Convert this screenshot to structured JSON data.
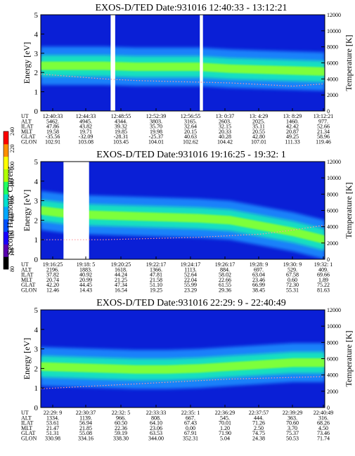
{
  "colors": {
    "deep": "#0a1fd6",
    "band_center": "#7dff3a",
    "band_mid": "#18e0c0",
    "band_edge": "#1a8cff",
    "gap": "#ffffff",
    "temperature_trace": "#ff9aa0"
  },
  "colorbar": {
    "label": "Second Harmonic Current",
    "ticks": [
      "80",
      "100",
      "120",
      "140",
      "160",
      "180",
      "200",
      "220",
      "240"
    ],
    "colors": [
      "#000000",
      "#5a00b0",
      "#1a00ff",
      "#0050ff",
      "#00a8ff",
      "#00e0d0",
      "#20ff60",
      "#b0ff00",
      "#ffff00",
      "#ff9000",
      "#ff0000"
    ]
  },
  "ephemeris_labels": [
    "UT",
    "ALT",
    "ILAT",
    "MLT",
    "GLAT",
    "GLON"
  ],
  "chart_data": [
    {
      "type": "heatmap",
      "title": "EXOS-D/TED   Date:931016   12:40:33 - 13:12:21",
      "ylabel": "Energy [eV]",
      "y2label": "Temperature [K]",
      "ylim": [
        0,
        5
      ],
      "y2lim": [
        0,
        12000
      ],
      "yticks": [
        "0",
        "1",
        "2",
        "3",
        "4",
        "5"
      ],
      "y2ticks": [
        "0",
        "2000",
        "4000",
        "6000",
        "8000",
        "10000",
        "12000"
      ],
      "ephemeris": [
        [
          "12:40:33",
          "5462.",
          "47.86",
          "19.58",
          "-35.56",
          "102.91"
        ],
        [
          "12:44:33",
          "4945.",
          "43.82",
          "19.71",
          "-32.09",
          "103.08"
        ],
        [
          "12:48:55",
          "4344.",
          "39.32",
          "19.85",
          "-28.31",
          "103.45"
        ],
        [
          "12:52:39",
          "3803.",
          "35.70",
          "19.98",
          "-25.37",
          "104.01"
        ],
        [
          "12:56:55",
          "3165.",
          "32.64",
          "20.15",
          "40.63",
          "102.62"
        ],
        [
          "13: 0:37",
          "2603.",
          "32.15",
          "20.33",
          "40.28",
          "104.42"
        ],
        [
          "13: 4:29",
          "2025.",
          "35.11",
          "20.55",
          "42.80",
          "107.01"
        ],
        [
          "13: 8:29",
          "1460.",
          "42.42",
          "20.87",
          "49.25",
          "111.33"
        ],
        [
          "13:12:21",
          "977.",
          "52.66",
          "21.34",
          "58.96",
          "119.46"
        ]
      ],
      "band_center_ev": [
        2.35,
        2.35,
        2.35,
        2.3,
        2.3,
        2.3,
        2.2,
        2.15,
        2.1,
        2.05
      ],
      "temperature_k": [
        4600,
        4300,
        4000,
        3800,
        3700,
        3600,
        3500,
        3300,
        3100,
        3400
      ]
    },
    {
      "type": "heatmap",
      "title": "EXOS-D/TED   Date:931016   19:16:25 - 19:32: 1",
      "ylabel": "Energy [eV]",
      "y2label": "Temperature [K]",
      "ylim": [
        0,
        5
      ],
      "y2lim": [
        0,
        12000
      ],
      "yticks": [
        "0",
        "1",
        "2",
        "3",
        "4",
        "5"
      ],
      "y2ticks": [
        "0",
        "2000",
        "4000",
        "6000",
        "8000",
        "10000",
        "12000"
      ],
      "ephemeris": [
        [
          "19:16:25",
          "2196.",
          "37.82",
          "20.74",
          "42.20",
          "12.46"
        ],
        [
          "19:18: 5",
          "1883.",
          "40.92",
          "20.99",
          "44.45",
          "14.43"
        ],
        [
          "19:20:25",
          "1618.",
          "44.24",
          "21.25",
          "47.34",
          "16.54"
        ],
        [
          "19:22:17",
          "1366.",
          "47.81",
          "21.58",
          "51.10",
          "19.25"
        ],
        [
          "19:24:17",
          "1113.",
          "52.64",
          "22.04",
          "55.99",
          "23.29"
        ],
        [
          "19:26:17",
          "884.",
          "58.02",
          "22.66",
          "61.55",
          "29.36"
        ],
        [
          "19:28: 9",
          "697.",
          "63.04",
          "23.46",
          "66.99",
          "38.45"
        ],
        [
          "19:30: 9",
          "529.",
          "67.58",
          "0.60",
          "72.30",
          "55.31"
        ],
        [
          "19:32: 1",
          "409.",
          "69.66",
          "1.89",
          "75.22",
          "81.63"
        ]
      ],
      "band_center_ev": [
        2.5,
        2.3,
        2.25,
        2.2,
        2.15,
        2.1,
        2.0,
        1.7,
        1.4,
        1.0
      ],
      "temperature_k": [
        2400,
        2400,
        2400,
        2500,
        2600,
        2700,
        2900,
        3100,
        3600,
        4200
      ]
    },
    {
      "type": "heatmap",
      "title": "EXOS-D/TED   Date:931016   22:29: 9 - 22:40:49",
      "ylabel": "Energy [eV]",
      "y2label": "Temperature [K]",
      "ylim": [
        0,
        5
      ],
      "y2lim": [
        0,
        12000
      ],
      "yticks": [
        "0",
        "1",
        "2",
        "3",
        "4",
        "5"
      ],
      "y2ticks": [
        "0",
        "2000",
        "4000",
        "6000",
        "8000",
        "10000",
        "12000"
      ],
      "ephemeris": [
        [
          "22:29: 9",
          "1334.",
          "53.61",
          "21.47",
          "51.31",
          "330.98"
        ],
        [
          "22:30:37",
          "1139.",
          "56.94",
          "21.85",
          "55.08",
          "334.16"
        ],
        [
          "22:32: 5",
          "966.",
          "60.50",
          "22.36",
          "59.19",
          "338.30"
        ],
        [
          "22:33:33",
          "808.",
          "64.10",
          "23.06",
          "63.53",
          "344.00"
        ],
        [
          "22:35: 1",
          "667.",
          "67.43",
          "0.00",
          "67.91",
          "352.31"
        ],
        [
          "22:36:29",
          "545.",
          "70.01",
          "1.20",
          "71.90",
          "5.04"
        ],
        [
          "22:37:57",
          "444.",
          "71.26",
          "2.50",
          "74.75",
          "24.38"
        ],
        [
          "22:39:29",
          "363.",
          "70.60",
          "3.70",
          "75.37",
          "50.53"
        ],
        [
          "22:40:49",
          "316.",
          "68.26",
          "4.50",
          "73.46",
          "71.74"
        ]
      ],
      "band_center_ev": [
        2.1,
        2.05,
        2.0,
        1.95,
        1.95,
        2.0,
        2.1,
        2.2,
        2.3,
        2.3
      ],
      "temperature_k": [
        2300,
        2500,
        2700,
        2900,
        3100,
        3300,
        3500,
        3600,
        3700,
        3800
      ]
    }
  ]
}
